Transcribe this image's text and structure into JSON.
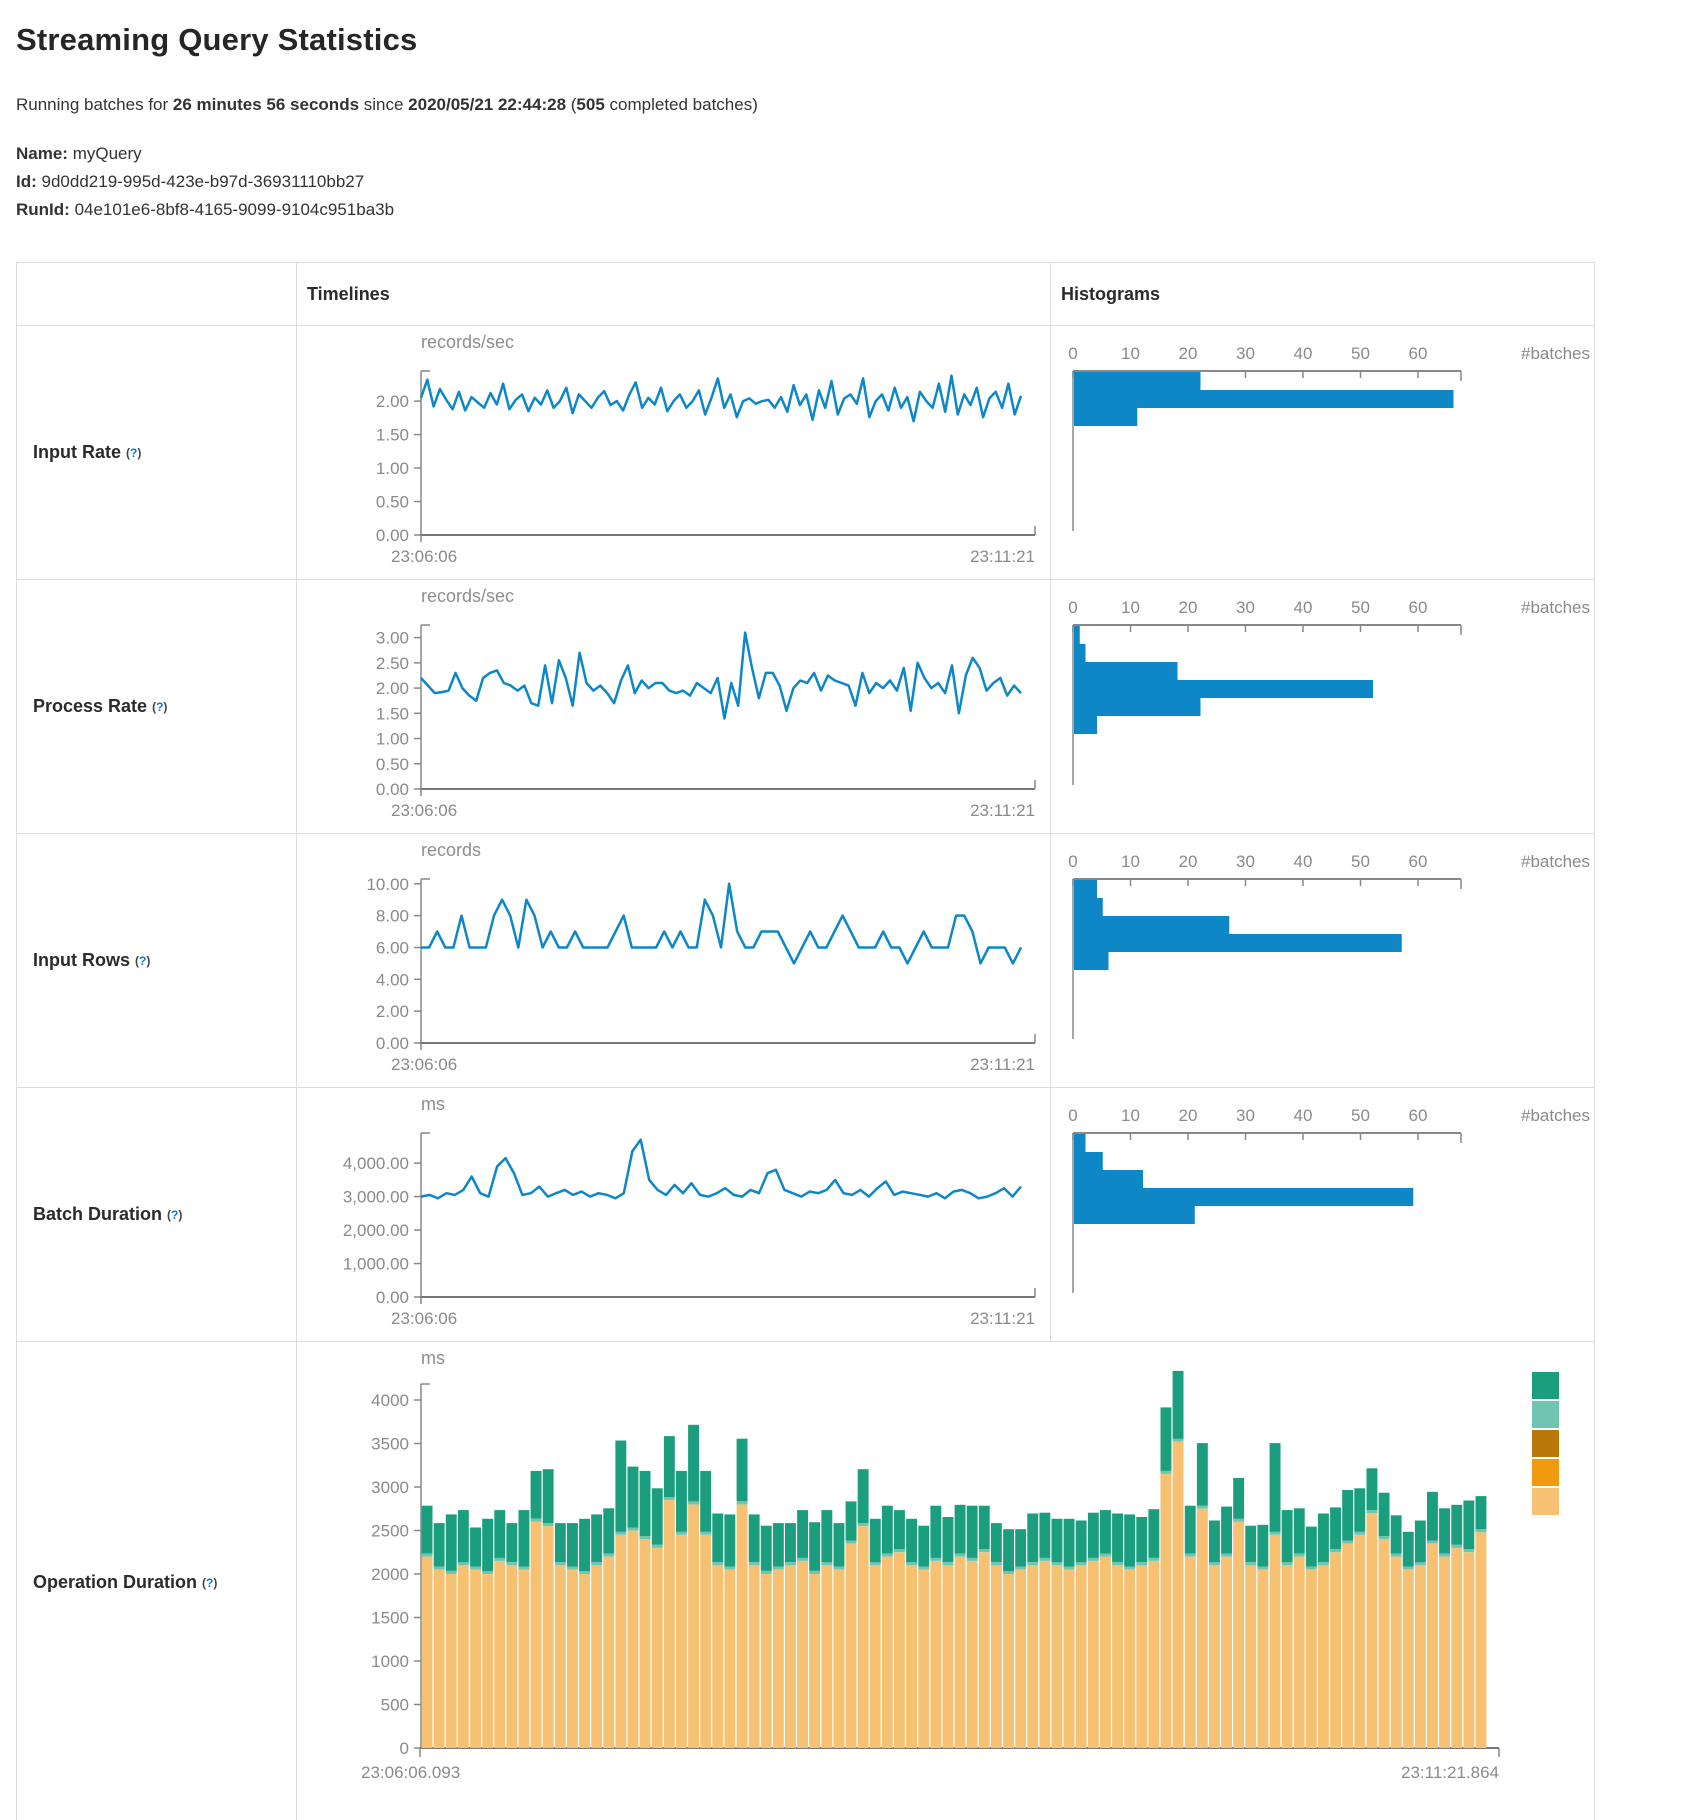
{
  "page": {
    "title": "Streaming Query Statistics"
  },
  "summary": {
    "prefix": "Running batches for ",
    "duration": "26 minutes 56 seconds",
    "since_text": " since ",
    "timestamp": "2020/05/21 22:44:28",
    "paren_open": " (",
    "completed_count": "505",
    "suffix": " completed batches)"
  },
  "meta": {
    "name_label": "Name:",
    "name": "myQuery",
    "id_label": "Id:",
    "id": "9d0dd219-995d-423e-b97d-36931110bb27",
    "runid_label": "RunId:",
    "runid": "04e101e6-8bf8-4165-9099-9104c951ba3b"
  },
  "table": {
    "timelines_header": "Timelines",
    "histograms_header": "Histograms",
    "help": {
      "open": "(",
      "q": "?",
      "close": ")"
    },
    "rows": [
      {
        "label": "Input Rate"
      },
      {
        "label": "Process Rate"
      },
      {
        "label": "Input Rows"
      },
      {
        "label": "Batch Duration"
      },
      {
        "label": "Operation Duration"
      }
    ]
  },
  "colors": {
    "line_blue": "#0D87C6",
    "axis_gray": "#888888",
    "axis_dark": "#777777",
    "tan": "#F6C173",
    "teal": "#1A9E7E",
    "teal_light": "#70C5B2",
    "brown": "#B97908",
    "orange": "#F29A0F"
  },
  "charts": {
    "input_rate_timeline": {
      "type": "line",
      "unit": "records/sec",
      "ymax": 2.45,
      "yticks": [
        [
          "0.00",
          0
        ],
        [
          "0.50",
          0.5
        ],
        [
          "1.00",
          1
        ],
        [
          "1.50",
          1.5
        ],
        [
          "2.00",
          2
        ]
      ],
      "x_start": "23:06:06",
      "x_end": "23:11:21",
      "values": [
        2.05,
        2.32,
        1.92,
        2.18,
        2.02,
        1.88,
        2.14,
        1.86,
        2.06,
        1.98,
        1.9,
        2.12,
        1.95,
        2.26,
        1.88,
        2.02,
        2.1,
        1.85,
        2.05,
        1.95,
        2.16,
        1.9,
        2.0,
        2.2,
        1.82,
        2.1,
        2.0,
        1.9,
        2.05,
        2.15,
        1.94,
        2.0,
        1.86,
        2.1,
        2.28,
        1.9,
        2.05,
        1.95,
        2.2,
        1.85,
        2.0,
        2.1,
        1.9,
        2.0,
        2.16,
        1.8,
        2.05,
        2.34,
        1.9,
        2.1,
        1.76,
        2.0,
        2.04,
        1.96,
        2.0,
        2.02,
        1.9,
        2.06,
        1.84,
        2.24,
        1.94,
        2.1,
        1.72,
        2.16,
        1.9,
        2.3,
        1.8,
        2.04,
        2.1,
        1.96,
        2.34,
        1.76,
        2.0,
        2.1,
        1.86,
        2.2,
        1.9,
        2.06,
        1.7,
        2.14,
        2.0,
        1.9,
        2.26,
        1.84,
        2.38,
        1.8,
        2.1,
        1.94,
        2.2,
        1.76,
        2.04,
        2.14,
        1.9,
        2.26,
        1.8,
        2.08
      ]
    },
    "input_rate_histogram": {
      "type": "hist",
      "axis_label": "#batches",
      "ticks": [
        0,
        10,
        20,
        30,
        40,
        50,
        60
      ],
      "values": [
        22,
        66,
        11
      ]
    },
    "process_rate_timeline": {
      "type": "line",
      "unit": "records/sec",
      "ymax": 3.25,
      "yticks": [
        [
          "0.00",
          0
        ],
        [
          "0.50",
          0.5
        ],
        [
          "1.00",
          1
        ],
        [
          "1.50",
          1.5
        ],
        [
          "2.00",
          2
        ],
        [
          "2.50",
          2.5
        ],
        [
          "3.00",
          3
        ]
      ],
      "x_start": "23:06:06",
      "x_end": "23:11:21",
      "values": [
        2.2,
        2.05,
        1.9,
        1.92,
        1.95,
        2.3,
        2.0,
        1.85,
        1.75,
        2.2,
        2.3,
        2.35,
        2.1,
        2.05,
        1.95,
        2.05,
        1.7,
        1.65,
        2.45,
        1.7,
        2.55,
        2.2,
        1.65,
        2.7,
        2.1,
        1.95,
        2.05,
        1.9,
        1.7,
        2.15,
        2.45,
        1.9,
        2.15,
        2.0,
        2.1,
        2.1,
        1.95,
        1.9,
        1.95,
        1.85,
        2.1,
        2.0,
        1.9,
        2.2,
        1.4,
        2.1,
        1.65,
        3.1,
        2.4,
        1.8,
        2.3,
        2.3,
        2.05,
        1.55,
        2.0,
        2.15,
        2.1,
        2.3,
        1.95,
        2.25,
        2.15,
        2.1,
        2.05,
        1.65,
        2.3,
        1.9,
        2.1,
        2.0,
        2.15,
        1.95,
        2.4,
        1.55,
        2.5,
        2.2,
        2.0,
        2.1,
        1.9,
        2.45,
        1.5,
        2.25,
        2.6,
        2.4,
        1.95,
        2.1,
        2.2,
        1.85,
        2.05,
        1.9
      ]
    },
    "process_rate_histogram": {
      "type": "hist",
      "axis_label": "#batches",
      "ticks": [
        0,
        10,
        20,
        30,
        40,
        50,
        60
      ],
      "values": [
        1,
        2,
        18,
        52,
        22,
        4
      ]
    },
    "input_rows_timeline": {
      "type": "line",
      "unit": "records",
      "ymax": 10.3,
      "yticks": [
        [
          "0.00",
          0
        ],
        [
          "2.00",
          2
        ],
        [
          "4.00",
          4
        ],
        [
          "6.00",
          6
        ],
        [
          "8.00",
          8
        ],
        [
          "10.00",
          10
        ]
      ],
      "x_start": "23:06:06",
      "x_end": "23:11:21",
      "values": [
        6,
        6,
        7,
        6,
        6,
        8,
        6,
        6,
        6,
        8,
        9,
        8,
        6,
        9,
        8,
        6,
        7,
        6,
        6,
        7,
        6,
        6,
        6,
        6,
        7,
        8,
        6,
        6,
        6,
        6,
        7,
        6,
        7,
        6,
        6,
        9,
        8,
        6,
        10,
        7,
        6,
        6,
        7,
        7,
        7,
        6,
        5,
        6,
        7,
        6,
        6,
        7,
        8,
        7,
        6,
        6,
        6,
        7,
        6,
        6,
        5,
        6,
        7,
        6,
        6,
        6,
        8,
        8,
        7,
        5,
        6,
        6,
        6,
        5,
        6
      ]
    },
    "input_rows_histogram": {
      "type": "hist",
      "axis_label": "#batches",
      "ticks": [
        0,
        10,
        20,
        30,
        40,
        50,
        60
      ],
      "values": [
        4,
        5,
        27,
        57,
        6
      ]
    },
    "batch_duration_timeline": {
      "type": "line",
      "unit": "ms",
      "ymax": 4900,
      "yticks": [
        [
          "0.00",
          0
        ],
        [
          "1,000.00",
          1000
        ],
        [
          "2,000.00",
          2000
        ],
        [
          "3,000.00",
          3000
        ],
        [
          "4,000.00",
          4000
        ]
      ],
      "x_start": "23:06:06",
      "x_end": "23:11:21",
      "values": [
        3000,
        3050,
        2950,
        3100,
        3050,
        3200,
        3600,
        3100,
        3000,
        3900,
        4150,
        3700,
        3050,
        3100,
        3300,
        3000,
        3100,
        3200,
        3050,
        3150,
        3000,
        3100,
        3050,
        2950,
        3100,
        4350,
        4700,
        3500,
        3200,
        3050,
        3350,
        3100,
        3400,
        3050,
        3000,
        3100,
        3250,
        3050,
        3000,
        3200,
        3100,
        3700,
        3800,
        3200,
        3100,
        3000,
        3150,
        3100,
        3200,
        3500,
        3100,
        3050,
        3200,
        3000,
        3250,
        3450,
        3050,
        3150,
        3100,
        3050,
        3000,
        3100,
        2950,
        3150,
        3200,
        3100,
        2950,
        3000,
        3100,
        3250,
        3000,
        3300
      ]
    },
    "batch_duration_histogram": {
      "type": "hist",
      "axis_label": "#batches",
      "ticks": [
        0,
        10,
        20,
        30,
        40,
        50,
        60
      ],
      "values": [
        2,
        5,
        12,
        59,
        21
      ]
    },
    "operation_duration": {
      "type": "stack",
      "unit": "ms",
      "yticks": [
        [
          "0",
          0
        ],
        [
          "500",
          500
        ],
        [
          "1000",
          1000
        ],
        [
          "1500",
          1500
        ],
        [
          "2000",
          2000
        ],
        [
          "2500",
          2500
        ],
        [
          "3000",
          3000
        ],
        [
          "3500",
          3500
        ],
        [
          "4000",
          4000
        ]
      ],
      "x_start": "23:06:06.093",
      "x_end": "23:11:21.864",
      "sliver": 35,
      "tan_values": [
        2200,
        2050,
        2000,
        2100,
        2050,
        2000,
        2150,
        2100,
        2050,
        2600,
        2550,
        2100,
        2050,
        2000,
        2100,
        2200,
        2450,
        2500,
        2400,
        2300,
        2850,
        2450,
        2800,
        2450,
        2100,
        2050,
        2800,
        2100,
        2000,
        2050,
        2100,
        2150,
        2000,
        2100,
        2050,
        2350,
        2550,
        2100,
        2200,
        2250,
        2100,
        2050,
        2150,
        2100,
        2200,
        2150,
        2250,
        2100,
        2000,
        2050,
        2100,
        2150,
        2100,
        2050,
        2100,
        2150,
        2200,
        2100,
        2050,
        2100,
        2150,
        3150,
        3520,
        2200,
        2750,
        2100,
        2200,
        2600,
        2100,
        2050,
        2450,
        2100,
        2200,
        2050,
        2100,
        2250,
        2350,
        2450,
        2700,
        2400,
        2200,
        2050,
        2100,
        2350,
        2200,
        2300,
        2250,
        2480
      ],
      "green_values": [
        550,
        500,
        650,
        600,
        450,
        600,
        550,
        450,
        650,
        550,
        620,
        450,
        500,
        600,
        550,
        520,
        1050,
        700,
        750,
        650,
        700,
        700,
        880,
        700,
        560,
        600,
        720,
        550,
        520,
        500,
        450,
        550,
        560,
        600,
        500,
        450,
        620,
        500,
        550,
        450,
        500,
        470,
        600,
        520,
        560,
        600,
        500,
        450,
        480,
        430,
        560,
        520,
        500,
        550,
        480,
        520,
        500,
        560,
        600,
        520,
        560,
        730,
        780,
        550,
        720,
        480,
        540,
        470,
        420,
        480,
        1020,
        600,
        520,
        460,
        560,
        480,
        580,
        500,
        480,
        500,
        440,
        400,
        480,
        560,
        520,
        460,
        560,
        380
      ],
      "legend_colors": [
        "#1A9E7E",
        "#70C5B2",
        "#B97908",
        "#F29A0F",
        "#F6C173"
      ]
    }
  }
}
